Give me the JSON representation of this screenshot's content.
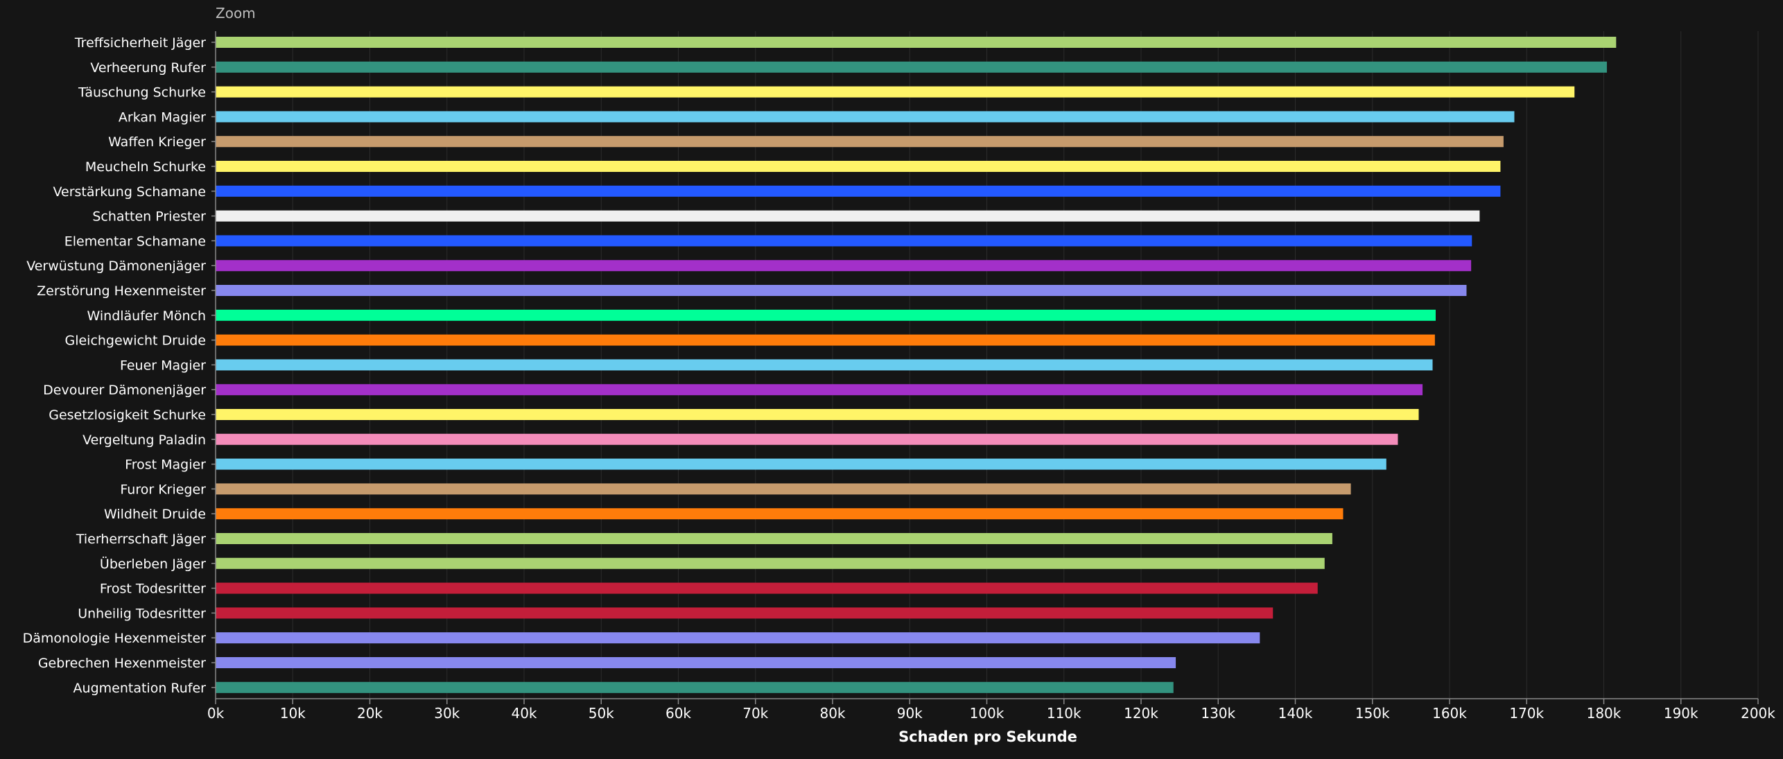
{
  "zoom_label": "Zoom",
  "chart_data": {
    "type": "bar",
    "orientation": "horizontal",
    "xlabel": "Schaden pro Sekunde",
    "xlim": [
      0,
      200000
    ],
    "xticks": [
      0,
      10000,
      20000,
      30000,
      40000,
      50000,
      60000,
      70000,
      80000,
      90000,
      100000,
      110000,
      120000,
      130000,
      140000,
      150000,
      160000,
      170000,
      180000,
      190000,
      200000
    ],
    "xtick_labels": [
      "0k",
      "10k",
      "20k",
      "30k",
      "40k",
      "50k",
      "60k",
      "70k",
      "80k",
      "90k",
      "100k",
      "110k",
      "120k",
      "130k",
      "140k",
      "150k",
      "160k",
      "170k",
      "180k",
      "190k",
      "200k"
    ],
    "grid": true,
    "bars": [
      {
        "label": "Treffsicherheit Jäger",
        "value": 181600,
        "color": "#aad372"
      },
      {
        "label": "Verheerung Rufer",
        "value": 180400,
        "color": "#33937f"
      },
      {
        "label": "Täuschung Schurke",
        "value": 176200,
        "color": "#fff468"
      },
      {
        "label": "Arkan Magier",
        "value": 168400,
        "color": "#68ccef"
      },
      {
        "label": "Waffen Krieger",
        "value": 167000,
        "color": "#c69b6d"
      },
      {
        "label": "Meucheln Schurke",
        "value": 166600,
        "color": "#fff468"
      },
      {
        "label": "Verstärkung Schamane",
        "value": 166600,
        "color": "#2359ff"
      },
      {
        "label": "Schatten Priester",
        "value": 163900,
        "color": "#f0f0f0"
      },
      {
        "label": "Elementar Schamane",
        "value": 162900,
        "color": "#2359ff"
      },
      {
        "label": "Verwüstung Dämonenjäger",
        "value": 162800,
        "color": "#a330c9"
      },
      {
        "label": "Zerstörung Hexenmeister",
        "value": 162200,
        "color": "#8788ee"
      },
      {
        "label": "Windläufer Mönch",
        "value": 158200,
        "color": "#00ff98"
      },
      {
        "label": "Gleichgewicht Druide",
        "value": 158100,
        "color": "#ff7c0a"
      },
      {
        "label": "Feuer Magier",
        "value": 157800,
        "color": "#68ccef"
      },
      {
        "label": "Devourer Dämonenjäger",
        "value": 156500,
        "color": "#a330c9"
      },
      {
        "label": "Gesetzlosigkeit Schurke",
        "value": 156000,
        "color": "#fff468"
      },
      {
        "label": "Vergeltung Paladin",
        "value": 153300,
        "color": "#f48cba"
      },
      {
        "label": "Frost Magier",
        "value": 151800,
        "color": "#68ccef"
      },
      {
        "label": "Furor Krieger",
        "value": 147200,
        "color": "#c69b6d"
      },
      {
        "label": "Wildheit Druide",
        "value": 146200,
        "color": "#ff7c0a"
      },
      {
        "label": "Tierherrschaft Jäger",
        "value": 144800,
        "color": "#aad372"
      },
      {
        "label": "Überleben Jäger",
        "value": 143800,
        "color": "#aad372"
      },
      {
        "label": "Frost Todesritter",
        "value": 142900,
        "color": "#c41e3a"
      },
      {
        "label": "Unheilig Todesritter",
        "value": 137100,
        "color": "#c41e3a"
      },
      {
        "label": "Dämonologie Hexenmeister",
        "value": 135400,
        "color": "#8788ee"
      },
      {
        "label": "Gebrechen Hexenmeister",
        "value": 124500,
        "color": "#8788ee"
      },
      {
        "label": "Augmentation Rufer",
        "value": 124200,
        "color": "#33937f"
      }
    ]
  }
}
